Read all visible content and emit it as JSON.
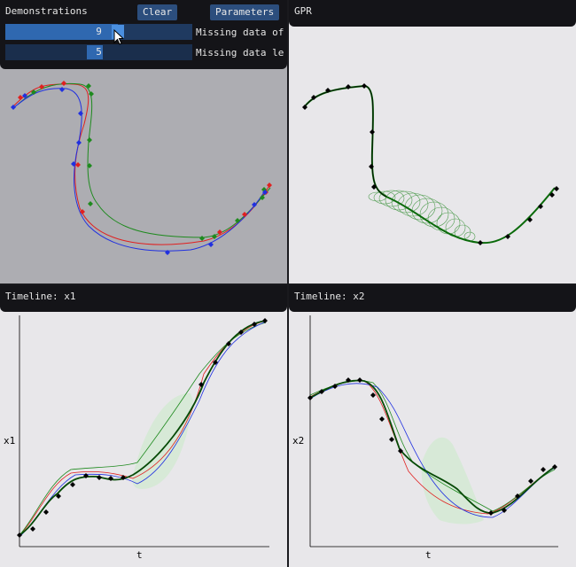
{
  "demonstrations": {
    "title": "Demonstrations",
    "clear_label": "Clear",
    "parameters_label": "Parameters",
    "slider1": {
      "value": "9",
      "label": "Missing data of",
      "fraction": 0.6
    },
    "slider2": {
      "value": "5",
      "label": "Missing data le",
      "fraction": 0.5
    }
  },
  "gpr": {
    "title": "GPR"
  },
  "timeline_x1": {
    "title": "Timeline: x1",
    "xlabel": "t",
    "ylabel": "x1"
  },
  "timeline_x2": {
    "title": "Timeline: x2",
    "xlabel": "t",
    "ylabel": "x2"
  },
  "colors": {
    "red": "#e02020",
    "green": "#1e8a1e",
    "blue": "#2030e0",
    "black": "#000000",
    "band": "#cfe8cf"
  },
  "icons": [
    "mouse-cursor-icon"
  ]
}
